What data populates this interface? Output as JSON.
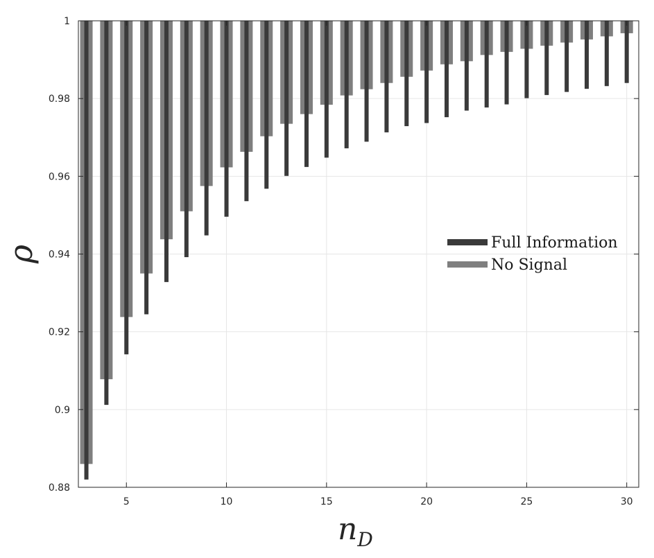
{
  "chart_data": {
    "type": "bar",
    "title": "",
    "xlabel": "n",
    "xlabel_subscript": "D",
    "ylabel": "ρ",
    "xlim": [
      2.6,
      30.6
    ],
    "ylim": [
      0.88,
      1.0
    ],
    "grid": true,
    "legend_position": "center-right",
    "x_ticks": [
      5,
      10,
      15,
      20,
      25,
      30
    ],
    "y_ticks": [
      0.88,
      0.9,
      0.92,
      0.94,
      0.96,
      0.98,
      1
    ],
    "x_tick_labels": [
      "5",
      "10",
      "15",
      "20",
      "25",
      "30"
    ],
    "y_tick_labels": [
      "0.88",
      "0.9",
      "0.92",
      "0.94",
      "0.96",
      "0.98",
      "1"
    ],
    "x": [
      3,
      4,
      5,
      6,
      7,
      8,
      9,
      10,
      11,
      12,
      13,
      14,
      15,
      16,
      17,
      18,
      19,
      20,
      21,
      22,
      23,
      24,
      25,
      26,
      27,
      28,
      29,
      30
    ],
    "series": [
      {
        "name": "Full Information",
        "color": "#3a3a3a",
        "values": [
          0.882,
          0.9012,
          0.9142,
          0.9245,
          0.9328,
          0.9392,
          0.9448,
          0.9496,
          0.9536,
          0.9568,
          0.9601,
          0.9624,
          0.9648,
          0.9672,
          0.9689,
          0.9713,
          0.9729,
          0.9737,
          0.9752,
          0.9769,
          0.9777,
          0.9785,
          0.9801,
          0.9809,
          0.9817,
          0.9825,
          0.9832,
          0.984
        ]
      },
      {
        "name": "No Signal",
        "color": "#7f7f7f",
        "values": [
          0.886,
          0.9078,
          0.9238,
          0.935,
          0.9438,
          0.951,
          0.9575,
          0.9623,
          0.9663,
          0.9703,
          0.9735,
          0.976,
          0.9784,
          0.9808,
          0.9824,
          0.984,
          0.9856,
          0.9872,
          0.9888,
          0.9896,
          0.9912,
          0.992,
          0.9928,
          0.9936,
          0.9944,
          0.9952,
          0.996,
          0.9968
        ]
      }
    ]
  },
  "colors": {
    "full_information": "#3a3a3a",
    "no_signal": "#7f7f7f",
    "grid": "#e6e6e6",
    "axis": "#262626"
  }
}
